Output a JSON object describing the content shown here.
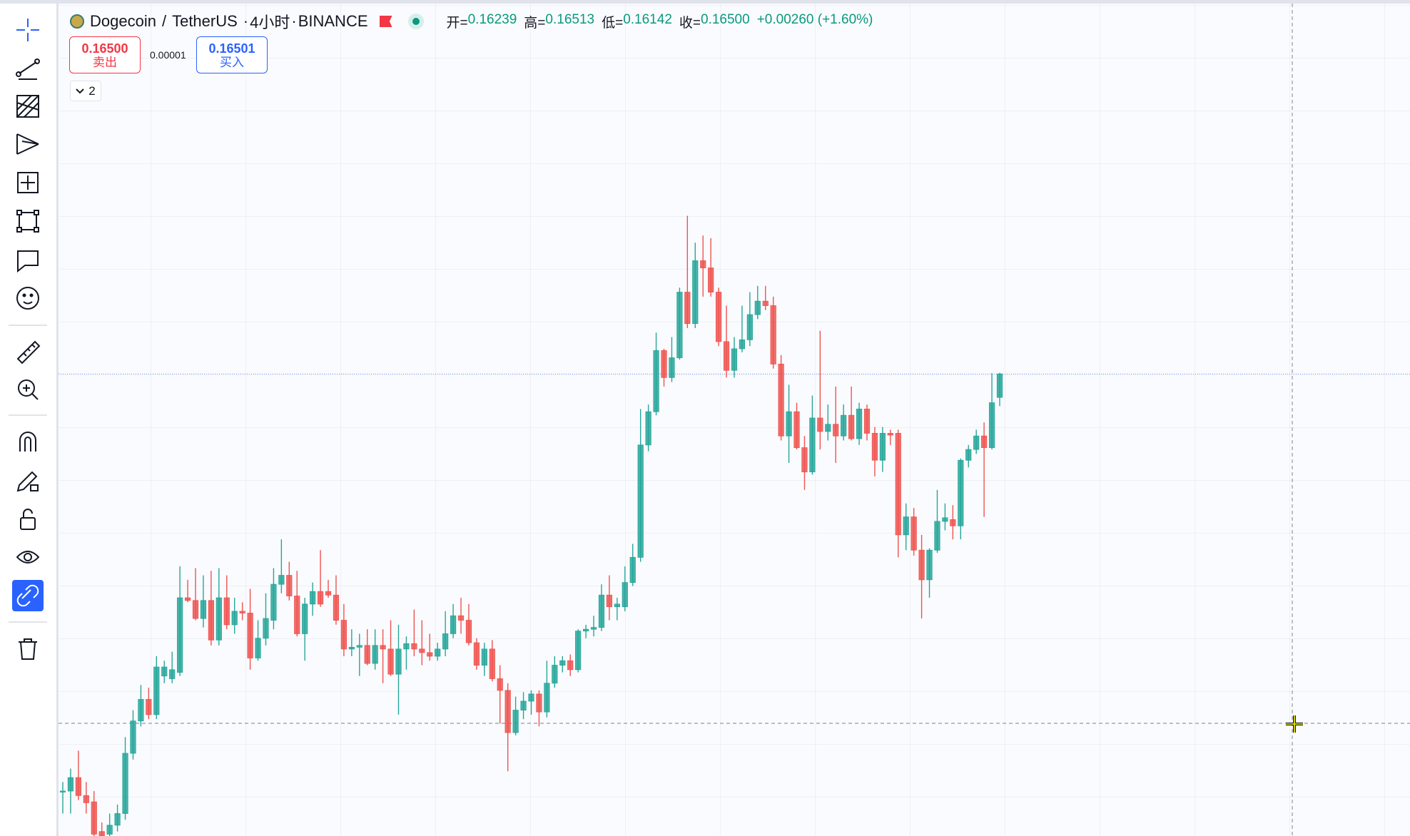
{
  "header": {
    "symbol": "Dogecoin",
    "separator": "/",
    "quote": "TetherUS",
    "dot": "·",
    "interval": "4小时",
    "exchange": "BINANCE"
  },
  "legend": [
    {
      "label": "开=",
      "value": "0.16239"
    },
    {
      "label": "高=",
      "value": "0.16513"
    },
    {
      "label": "低=",
      "value": "0.16142"
    },
    {
      "label": "收=",
      "value": "0.16500"
    }
  ],
  "change": "+0.00260 (+1.60%)",
  "trade": {
    "sell_price": "0.16500",
    "sell_label": "卖出",
    "spread": "0.00001",
    "buy_price": "0.16501",
    "buy_label": "买入"
  },
  "indicators_count": 2,
  "chart_data": {
    "type": "candlestick",
    "ylim": [
      0.1136,
      0.2066
    ],
    "up_color": "#26a69a",
    "down_color": "#ef5350",
    "open": [
      0.1186,
      0.1186,
      0.1201,
      0.1181,
      0.1174,
      0.1141,
      0.1138,
      0.1148,
      0.1161,
      0.1228,
      0.1264,
      0.1288,
      0.1271,
      0.1314,
      0.1311,
      0.1318,
      0.1401,
      0.1398,
      0.1378,
      0.1398,
      0.1354,
      0.1401,
      0.1371,
      0.1386,
      0.1384,
      0.1334,
      0.1356,
      0.1376,
      0.1416,
      0.1426,
      0.1403,
      0.1361,
      0.1394,
      0.1408,
      0.1408,
      0.1404,
      0.1376,
      0.1344,
      0.1346,
      0.1348,
      0.1328,
      0.1348,
      0.1344,
      0.1316,
      0.1344,
      0.135,
      0.1344,
      0.134,
      0.1336,
      0.1344,
      0.1361,
      0.1381,
      0.1376,
      0.1351,
      0.1326,
      0.1344,
      0.1311,
      0.1298,
      0.1251,
      0.1276,
      0.1286,
      0.1294,
      0.1274,
      0.1306,
      0.1326,
      0.1331,
      0.1321,
      0.1364,
      0.1366,
      0.1368,
      0.1404,
      0.1391,
      0.1391,
      0.1418,
      0.1446,
      0.1571,
      0.1608,
      0.1676,
      0.1646,
      0.1668,
      0.1741,
      0.1706,
      0.1776,
      0.1768,
      0.1741,
      0.1686,
      0.1654,
      0.1678,
      0.1688,
      0.1716,
      0.1731,
      0.1726,
      0.1661,
      0.1581,
      0.1608,
      0.1568,
      0.1541,
      0.1601,
      0.1586,
      0.1594,
      0.1581,
      0.1604,
      0.1578,
      0.1611,
      0.1584,
      0.1554,
      0.1584,
      0.1584,
      0.1471,
      0.1491,
      0.1454,
      0.1421,
      0.1454,
      0.1486,
      0.1488,
      0.1481,
      0.1554,
      0.1566,
      0.1581,
      0.1568,
      0.16239
    ],
    "high": [
      0.1196,
      0.1211,
      0.1231,
      0.1196,
      0.1186,
      0.1151,
      0.1161,
      0.1171,
      0.1246,
      0.1276,
      0.1304,
      0.1301,
      0.1336,
      0.1331,
      0.1341,
      0.1436,
      0.1421,
      0.1434,
      0.1426,
      0.1431,
      0.1434,
      0.1426,
      0.1401,
      0.1396,
      0.1411,
      0.1376,
      0.1406,
      0.1434,
      0.1466,
      0.1441,
      0.1431,
      0.1401,
      0.1418,
      0.1454,
      0.1421,
      0.1426,
      0.1394,
      0.1366,
      0.1361,
      0.1366,
      0.1366,
      0.1366,
      0.1376,
      0.1371,
      0.1358,
      0.1388,
      0.1376,
      0.1361,
      0.1351,
      0.1386,
      0.1394,
      0.1401,
      0.1394,
      0.1356,
      0.1351,
      0.1354,
      0.1326,
      0.1306,
      0.1291,
      0.1296,
      0.1298,
      0.1298,
      0.1331,
      0.1336,
      0.1336,
      0.1338,
      0.1366,
      0.1371,
      0.1381,
      0.1416,
      0.1426,
      0.1401,
      0.1436,
      0.1461,
      0.1611,
      0.1616,
      0.1696,
      0.1678,
      0.1691,
      0.1746,
      0.1826,
      0.1796,
      0.1804,
      0.1801,
      0.1746,
      0.1726,
      0.1691,
      0.1726,
      0.1741,
      0.1748,
      0.1748,
      0.1736,
      0.1671,
      0.1638,
      0.1618,
      0.1581,
      0.1626,
      0.1698,
      0.1616,
      0.1636,
      0.1616,
      0.1636,
      0.1618,
      0.1616,
      0.1591,
      0.1591,
      0.1588,
      0.1588,
      0.1506,
      0.1501,
      0.1471,
      0.1456,
      0.1521,
      0.1506,
      0.1504,
      0.1556,
      0.1571,
      0.1588,
      0.1596,
      0.1651,
      0.16513
    ],
    "low": [
      0.1161,
      0.1161,
      0.1176,
      0.1161,
      0.1136,
      0.1136,
      0.1136,
      0.1141,
      0.1154,
      0.1221,
      0.1258,
      0.1266,
      0.1266,
      0.1306,
      0.1306,
      0.1314,
      0.1396,
      0.1376,
      0.1368,
      0.1348,
      0.1348,
      0.1366,
      0.1361,
      0.1376,
      0.1321,
      0.1331,
      0.1348,
      0.1366,
      0.1406,
      0.1398,
      0.1358,
      0.1331,
      0.1381,
      0.1391,
      0.1401,
      0.1371,
      0.1336,
      0.1336,
      0.1314,
      0.1326,
      0.1321,
      0.1306,
      0.1314,
      0.1271,
      0.1321,
      0.1336,
      0.1326,
      0.1331,
      0.1331,
      0.1336,
      0.1356,
      0.1361,
      0.1348,
      0.1321,
      0.1314,
      0.1308,
      0.1261,
      0.1208,
      0.1248,
      0.1266,
      0.1271,
      0.1258,
      0.1268,
      0.1301,
      0.1318,
      0.1314,
      0.1318,
      0.1356,
      0.1358,
      0.1364,
      0.1376,
      0.1376,
      0.1386,
      0.1414,
      0.1441,
      0.1564,
      0.1604,
      0.1636,
      0.1641,
      0.1666,
      0.1701,
      0.1701,
      0.1736,
      0.1736,
      0.1681,
      0.1646,
      0.1646,
      0.1674,
      0.1681,
      0.1711,
      0.1721,
      0.1656,
      0.1576,
      0.1551,
      0.1566,
      0.1521,
      0.1538,
      0.1566,
      0.1576,
      0.1551,
      0.1576,
      0.1576,
      0.1571,
      0.1576,
      0.1536,
      0.1541,
      0.1571,
      0.1446,
      0.1454,
      0.1448,
      0.1378,
      0.1401,
      0.1451,
      0.1476,
      0.1466,
      0.1466,
      0.1546,
      0.1561,
      0.1491,
      0.1566,
      0.16142
    ],
    "close": [
      0.1186,
      0.1201,
      0.1181,
      0.1173,
      0.1138,
      0.1136,
      0.1148,
      0.1161,
      0.1228,
      0.1264,
      0.1288,
      0.1271,
      0.1324,
      0.1324,
      0.1321,
      0.1401,
      0.1398,
      0.1378,
      0.1398,
      0.1354,
      0.1401,
      0.1371,
      0.1386,
      0.1384,
      0.1334,
      0.1356,
      0.1378,
      0.1416,
      0.1426,
      0.1403,
      0.1361,
      0.1394,
      0.1408,
      0.1394,
      0.1404,
      0.1376,
      0.1344,
      0.1346,
      0.1348,
      0.1328,
      0.1348,
      0.1344,
      0.1316,
      0.1344,
      0.135,
      0.1344,
      0.134,
      0.1336,
      0.1344,
      0.1361,
      0.1381,
      0.1376,
      0.1351,
      0.1326,
      0.1344,
      0.1311,
      0.1298,
      0.1251,
      0.1276,
      0.1286,
      0.1294,
      0.1274,
      0.1306,
      0.1326,
      0.1331,
      0.1321,
      0.1364,
      0.1366,
      0.1368,
      0.1404,
      0.1391,
      0.1394,
      0.1418,
      0.1446,
      0.1571,
      0.1608,
      0.1676,
      0.1646,
      0.1668,
      0.1741,
      0.1706,
      0.1776,
      0.1768,
      0.1741,
      0.1686,
      0.1654,
      0.1678,
      0.1688,
      0.1716,
      0.1731,
      0.1726,
      0.1661,
      0.1581,
      0.1608,
      0.1568,
      0.1541,
      0.1601,
      0.1586,
      0.1594,
      0.1581,
      0.1604,
      0.1578,
      0.1611,
      0.1584,
      0.1554,
      0.1584,
      0.1582,
      0.1471,
      0.1491,
      0.1454,
      0.1421,
      0.1454,
      0.1486,
      0.149,
      0.1481,
      0.1554,
      0.1566,
      0.1581,
      0.1568,
      0.1618,
      0.165
    ]
  }
}
